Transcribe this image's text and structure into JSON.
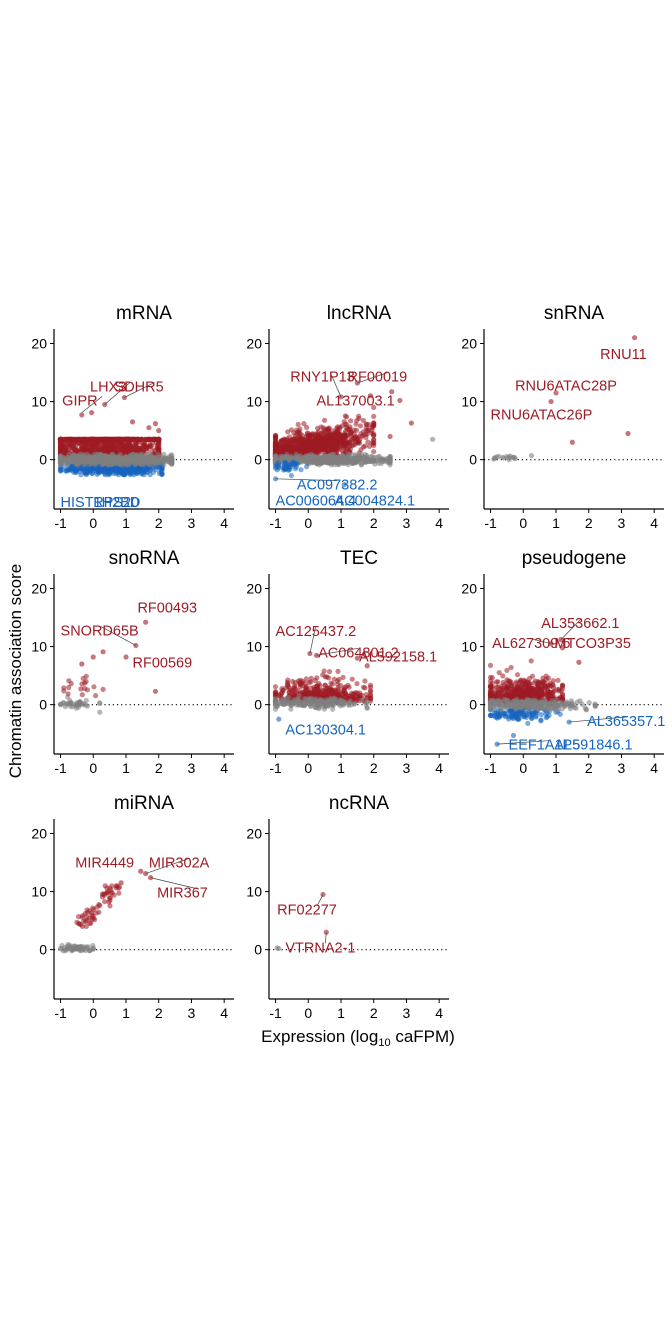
{
  "figure": {
    "ylabel": "Chromatin association score",
    "xlabel": "Expression (log",
    "xlabel_sub": "10",
    "xlabel_after": " caFPM)"
  },
  "colors": {
    "up": "#9e1b24",
    "down": "#1565c0",
    "neutral": "#808080",
    "axis": "#000000"
  },
  "chart_data": [
    {
      "type": "scatter",
      "title": "mRNA",
      "xlim": [
        -1.2,
        4.3
      ],
      "ylim": [
        -8.5,
        22.5
      ],
      "xticks": [
        -1,
        0,
        1,
        2,
        3,
        4
      ],
      "yticks": [
        0,
        10,
        20
      ],
      "reference_line": {
        "y": 0,
        "style": "dotted"
      },
      "clouds": [
        {
          "group": "up",
          "x": [
            -1.0,
            2.0
          ],
          "y": [
            0.5,
            3.5
          ],
          "n": 900,
          "shape": "dome",
          "cx": 0.4,
          "cy": 2.5,
          "rx": 2.0,
          "ry": 4.2
        },
        {
          "group": "down",
          "x": [
            -1.0,
            2.1
          ],
          "y": [
            -2.6,
            -0.4
          ],
          "n": 500,
          "shape": "blob",
          "cx": 0.6,
          "cy": -1.4,
          "rx": 1.6,
          "ry": 1.2
        },
        {
          "group": "neutral",
          "x": [
            -1.0,
            2.4
          ],
          "y": [
            -0.9,
            0.9
          ],
          "n": 700,
          "shape": "band",
          "cx": 0.6,
          "cy": 0,
          "rx": 1.8,
          "ry": 0.9
        }
      ],
      "points": [
        {
          "x": -0.35,
          "y": 7.7,
          "group": "up"
        },
        {
          "x": -0.05,
          "y": 8.1,
          "group": "up"
        },
        {
          "x": 0.35,
          "y": 9.5,
          "group": "up"
        },
        {
          "x": 0.95,
          "y": 10.7,
          "group": "up"
        },
        {
          "x": 1.2,
          "y": 6.5,
          "group": "up"
        },
        {
          "x": 1.9,
          "y": 6.2,
          "group": "up"
        },
        {
          "x": 2.0,
          "y": 5.0,
          "group": "up"
        },
        {
          "x": 1.7,
          "y": 5.5,
          "group": "up"
        }
      ],
      "labels": [
        {
          "text": "GIPR",
          "x": -0.95,
          "y": 10.2,
          "group": "up",
          "px": -0.35,
          "py": 8.1
        },
        {
          "text": "LHX3",
          "x": -0.1,
          "y": 12.6,
          "group": "up",
          "px": 0.35,
          "py": 9.5
        },
        {
          "text": "SDHR5",
          "x": 0.65,
          "y": 12.6,
          "group": "up",
          "px": 0.95,
          "py": 10.7
        },
        {
          "text": "HIST1H2BD",
          "x": -1.0,
          "y": -7.3,
          "group": "down"
        },
        {
          "text": "RPS20",
          "x": 0.0,
          "y": -7.3,
          "group": "down"
        }
      ]
    },
    {
      "type": "scatter",
      "title": "lncRNA",
      "xlim": [
        -1.2,
        4.3
      ],
      "ylim": [
        -8.5,
        22.5
      ],
      "xticks": [
        -1,
        0,
        1,
        2,
        3,
        4
      ],
      "yticks": [
        0,
        10,
        20
      ],
      "reference_line": {
        "y": 0,
        "style": "dotted"
      },
      "clouds": [
        {
          "group": "up",
          "x": [
            -1.0,
            2.0
          ],
          "y": [
            0.5,
            9.0
          ],
          "n": 900,
          "shape": "wedge",
          "cx": 0.2,
          "cy": 2.3,
          "rx": 1.6,
          "ry": 2.2
        },
        {
          "group": "neutral",
          "x": [
            -1.0,
            2.5
          ],
          "y": [
            -0.9,
            0.9
          ],
          "n": 500,
          "shape": "band",
          "cx": 0.6,
          "cy": 0,
          "rx": 1.9,
          "ry": 0.9
        },
        {
          "group": "down",
          "x": [
            -1.0,
            0.5
          ],
          "y": [
            -3.5,
            -0.5
          ],
          "n": 40,
          "shape": "blob",
          "cx": -0.6,
          "cy": -1.2,
          "rx": 0.5,
          "ry": 1.0
        }
      ],
      "points": [
        {
          "x": 1.0,
          "y": 10.8,
          "group": "up"
        },
        {
          "x": 1.5,
          "y": 13.2,
          "group": "up"
        },
        {
          "x": 1.9,
          "y": 11.0,
          "group": "up"
        },
        {
          "x": 2.55,
          "y": 11.7,
          "group": "up"
        },
        {
          "x": 2.8,
          "y": 10.2,
          "group": "up"
        },
        {
          "x": 3.8,
          "y": 3.5,
          "group": "neutral"
        },
        {
          "x": 3.15,
          "y": 6.3,
          "group": "up"
        },
        {
          "x": 2.5,
          "y": 4.0,
          "group": "up"
        },
        {
          "x": 1.1,
          "y": -4.3,
          "group": "down"
        },
        {
          "x": -1.0,
          "y": -3.3,
          "group": "down"
        }
      ],
      "labels": [
        {
          "text": "RNY1P13",
          "x": -0.55,
          "y": 14.3,
          "group": "up",
          "px": 1.0,
          "py": 10.8
        },
        {
          "text": "RF00019",
          "x": 1.2,
          "y": 14.3,
          "group": "up",
          "px": 1.5,
          "py": 13.2
        },
        {
          "text": "AL137003.1",
          "x": 0.25,
          "y": 10.2,
          "group": "up"
        },
        {
          "text": "AC097382.2",
          "x": -0.35,
          "y": -4.3,
          "group": "down",
          "px": -1.0,
          "py": -3.3
        },
        {
          "text": "AC006064.4",
          "x": -1.0,
          "y": -7.0,
          "group": "down"
        },
        {
          "text": "AC004824.1",
          "x": 0.8,
          "y": -7.0,
          "group": "down"
        }
      ]
    },
    {
      "type": "scatter",
      "title": "snRNA",
      "xlim": [
        -1.2,
        4.3
      ],
      "ylim": [
        -8.5,
        22.5
      ],
      "xticks": [
        -1,
        0,
        1,
        2,
        3,
        4
      ],
      "yticks": [
        0,
        10,
        20
      ],
      "reference_line": {
        "y": 0,
        "style": "dotted"
      },
      "clouds": [
        {
          "group": "neutral",
          "x": [
            -0.9,
            0.4
          ],
          "y": [
            -0.3,
            0.9
          ],
          "n": 16,
          "shape": "band",
          "cx": -0.5,
          "cy": 0.3,
          "rx": 0.4,
          "ry": 0.4
        }
      ],
      "points": [
        {
          "x": 3.4,
          "y": 21.0,
          "group": "up"
        },
        {
          "x": 1.0,
          "y": 11.5,
          "group": "up"
        },
        {
          "x": 0.85,
          "y": 10.0,
          "group": "up"
        },
        {
          "x": 3.2,
          "y": 4.5,
          "group": "up"
        },
        {
          "x": 1.5,
          "y": 3.0,
          "group": "up"
        },
        {
          "x": 0.25,
          "y": 0.7,
          "group": "neutral"
        }
      ],
      "labels": [
        {
          "text": "RNU11",
          "x": 2.35,
          "y": 18.2,
          "group": "up"
        },
        {
          "text": "RNU6ATAC28P",
          "x": -0.25,
          "y": 12.8,
          "group": "up"
        },
        {
          "text": "RNU6ATAC26P",
          "x": -1.0,
          "y": 7.8,
          "group": "up"
        }
      ]
    },
    {
      "type": "scatter",
      "title": "snoRNA",
      "xlim": [
        -1.2,
        4.3
      ],
      "ylim": [
        -8.5,
        22.5
      ],
      "xticks": [
        -1,
        0,
        1,
        2,
        3,
        4
      ],
      "yticks": [
        0,
        10,
        20
      ],
      "reference_line": {
        "y": 0,
        "style": "dotted"
      },
      "clouds": [
        {
          "group": "neutral",
          "x": [
            -1.0,
            0.2
          ],
          "y": [
            -1.0,
            1.5
          ],
          "n": 40,
          "shape": "band",
          "cx": -0.5,
          "cy": 0.2,
          "rx": 0.6,
          "ry": 0.8
        },
        {
          "group": "up",
          "x": [
            -0.9,
            0.3
          ],
          "y": [
            1.5,
            6.0
          ],
          "n": 18,
          "shape": "blob",
          "cx": -0.4,
          "cy": 3.2,
          "rx": 0.6,
          "ry": 2.0
        }
      ],
      "points": [
        {
          "x": 1.6,
          "y": 14.2,
          "group": "up"
        },
        {
          "x": 1.3,
          "y": 10.2,
          "group": "up"
        },
        {
          "x": 1.0,
          "y": 8.2,
          "group": "up"
        },
        {
          "x": 0.3,
          "y": 9.1,
          "group": "up"
        },
        {
          "x": 0.0,
          "y": 8.2,
          "group": "up"
        },
        {
          "x": -0.35,
          "y": 7.0,
          "group": "up"
        },
        {
          "x": 1.9,
          "y": 2.3,
          "group": "up"
        },
        {
          "x": 0.2,
          "y": -1.3,
          "group": "neutral"
        }
      ],
      "labels": [
        {
          "text": "RF00493",
          "x": 1.35,
          "y": 16.7,
          "group": "up"
        },
        {
          "text": "SNORD65B",
          "x": -1.0,
          "y": 12.8,
          "group": "up",
          "px": 1.3,
          "py": 10.2
        },
        {
          "text": "RF00569",
          "x": 1.2,
          "y": 7.3,
          "group": "up"
        }
      ]
    },
    {
      "type": "scatter",
      "title": "TEC",
      "xlim": [
        -1.2,
        4.3
      ],
      "ylim": [
        -8.5,
        22.5
      ],
      "xticks": [
        -1,
        0,
        1,
        2,
        3,
        4
      ],
      "yticks": [
        0,
        10,
        20
      ],
      "reference_line": {
        "y": 0,
        "style": "dotted"
      },
      "clouds": [
        {
          "group": "up",
          "x": [
            -1.0,
            1.9
          ],
          "y": [
            0.5,
            7.5
          ],
          "n": 380,
          "shape": "dome",
          "cx": 0.4,
          "cy": 3.0,
          "rx": 1.5,
          "ry": 2.3
        },
        {
          "group": "neutral",
          "x": [
            -1.0,
            1.8
          ],
          "y": [
            -0.8,
            1.6
          ],
          "n": 180,
          "shape": "band",
          "cx": 0.2,
          "cy": 0.3,
          "rx": 1.4,
          "ry": 1.0
        }
      ],
      "points": [
        {
          "x": 0.05,
          "y": 8.8,
          "group": "up"
        },
        {
          "x": 0.25,
          "y": 8.5,
          "group": "up"
        },
        {
          "x": 1.5,
          "y": 8.0,
          "group": "up"
        },
        {
          "x": 1.8,
          "y": 6.7,
          "group": "up"
        },
        {
          "x": -0.9,
          "y": -2.5,
          "group": "down"
        }
      ],
      "labels": [
        {
          "text": "AC125437.2",
          "x": -1.0,
          "y": 12.7,
          "group": "up",
          "px": 0.05,
          "py": 8.8
        },
        {
          "text": "AC064801.2",
          "x": 0.3,
          "y": 9.0,
          "group": "up",
          "px": 0.25,
          "py": 8.5
        },
        {
          "text": "AL592158.1",
          "x": 1.55,
          "y": 8.3,
          "group": "up"
        },
        {
          "text": "AC130304.1",
          "x": -0.7,
          "y": -4.3,
          "group": "down"
        }
      ]
    },
    {
      "type": "scatter",
      "title": "pseudogene",
      "xlim": [
        -1.2,
        4.3
      ],
      "ylim": [
        -8.5,
        22.5
      ],
      "xticks": [
        -1,
        0,
        1,
        2,
        3,
        4
      ],
      "yticks": [
        0,
        10,
        20
      ],
      "reference_line": {
        "y": 0,
        "style": "dotted"
      },
      "clouds": [
        {
          "group": "up",
          "x": [
            -1.0,
            1.2
          ],
          "y": [
            0.5,
            9.0
          ],
          "n": 480,
          "shape": "dome",
          "cx": 0.0,
          "cy": 3.0,
          "rx": 1.3,
          "ry": 2.6
        },
        {
          "group": "down",
          "x": [
            -1.0,
            1.2
          ],
          "y": [
            -4.0,
            -0.5
          ],
          "n": 120,
          "shape": "blob",
          "cx": -0.1,
          "cy": -1.6,
          "rx": 1.0,
          "ry": 1.2
        },
        {
          "group": "neutral",
          "x": [
            -1.0,
            2.2
          ],
          "y": [
            -0.9,
            0.9
          ],
          "n": 260,
          "shape": "band",
          "cx": 0.3,
          "cy": 0,
          "rx": 1.6,
          "ry": 0.9
        }
      ],
      "points": [
        {
          "x": 1.15,
          "y": 11.2,
          "group": "up"
        },
        {
          "x": 0.85,
          "y": 10.5,
          "group": "up"
        },
        {
          "x": 1.2,
          "y": 9.8,
          "group": "up"
        },
        {
          "x": 1.7,
          "y": 7.3,
          "group": "up"
        },
        {
          "x": 1.4,
          "y": -3.0,
          "group": "down"
        },
        {
          "x": -0.3,
          "y": -5.3,
          "group": "down"
        },
        {
          "x": -0.8,
          "y": -6.8,
          "group": "down"
        }
      ],
      "labels": [
        {
          "text": "AL353662.1",
          "x": 0.55,
          "y": 14.1,
          "group": "up",
          "px": 1.15,
          "py": 11.2
        },
        {
          "text": "AL627309.6",
          "x": -0.95,
          "y": 10.6,
          "group": "up",
          "px": 0.85,
          "py": 10.5
        },
        {
          "text": "MTCO3P35",
          "x": 0.95,
          "y": 10.6,
          "group": "up"
        },
        {
          "text": "AL365357.1",
          "x": 1.95,
          "y": -2.8,
          "group": "down",
          "px": 1.4,
          "py": -3.0
        },
        {
          "text": "EEF1A1P5",
          "x": -0.45,
          "y": -6.9,
          "group": "down",
          "px": -0.8,
          "py": -6.8
        },
        {
          "text": "AL591846.1",
          "x": 0.95,
          "y": -6.9,
          "group": "down"
        }
      ]
    },
    {
      "type": "scatter",
      "title": "miRNA",
      "xlim": [
        -1.2,
        4.3
      ],
      "ylim": [
        -8.5,
        22.5
      ],
      "xticks": [
        -1,
        0,
        1,
        2,
        3,
        4
      ],
      "yticks": [
        0,
        10,
        20
      ],
      "reference_line": {
        "y": 0,
        "style": "dotted"
      },
      "clouds": [
        {
          "group": "neutral",
          "x": [
            -1.0,
            0.0
          ],
          "y": [
            -0.2,
            1.0
          ],
          "n": 60,
          "shape": "band",
          "cx": -0.5,
          "cy": 0.3,
          "rx": 0.5,
          "ry": 0.6
        },
        {
          "group": "up",
          "x": [
            -0.5,
            0.8
          ],
          "y": [
            4.0,
            11.0
          ],
          "n": 60,
          "shape": "trend",
          "x0": -0.45,
          "y0": 4.5,
          "x1": 0.8,
          "y1": 11.2,
          "spread": 0.8
        }
      ],
      "points": [
        {
          "x": 1.45,
          "y": 13.5,
          "group": "up"
        },
        {
          "x": 1.6,
          "y": 13.1,
          "group": "up"
        },
        {
          "x": 1.75,
          "y": 12.4,
          "group": "up"
        },
        {
          "x": 0.85,
          "y": 11.5,
          "group": "up"
        }
      ],
      "labels": [
        {
          "text": "MIR4449",
          "x": -0.55,
          "y": 15.0,
          "group": "up"
        },
        {
          "text": "MIR302A",
          "x": 1.7,
          "y": 15.0,
          "group": "up",
          "px": 1.6,
          "py": 13.1
        },
        {
          "text": "MIR367",
          "x": 1.95,
          "y": 9.8,
          "group": "up",
          "px": 1.75,
          "py": 12.4
        }
      ]
    },
    {
      "type": "scatter",
      "title": "ncRNA",
      "xlim": [
        -1.2,
        4.3
      ],
      "ylim": [
        -8.5,
        22.5
      ],
      "xticks": [
        -1,
        0,
        1,
        2,
        3,
        4
      ],
      "yticks": [
        0,
        10,
        20
      ],
      "reference_line": {
        "y": 0,
        "style": "dotted"
      },
      "clouds": [],
      "points": [
        {
          "x": 0.45,
          "y": 9.5,
          "group": "up"
        },
        {
          "x": 0.55,
          "y": 3.0,
          "group": "up"
        },
        {
          "x": -0.95,
          "y": 0.3,
          "group": "neutral"
        },
        {
          "x": -0.9,
          "y": 0.2,
          "group": "neutral"
        }
      ],
      "labels": [
        {
          "text": "RF02277",
          "x": -0.95,
          "y": 6.9,
          "group": "up",
          "px": 0.45,
          "py": 9.5
        },
        {
          "text": "VTRNA2-1",
          "x": -0.7,
          "y": 0.4,
          "group": "up",
          "px": 0.55,
          "py": 3.0
        }
      ]
    }
  ]
}
